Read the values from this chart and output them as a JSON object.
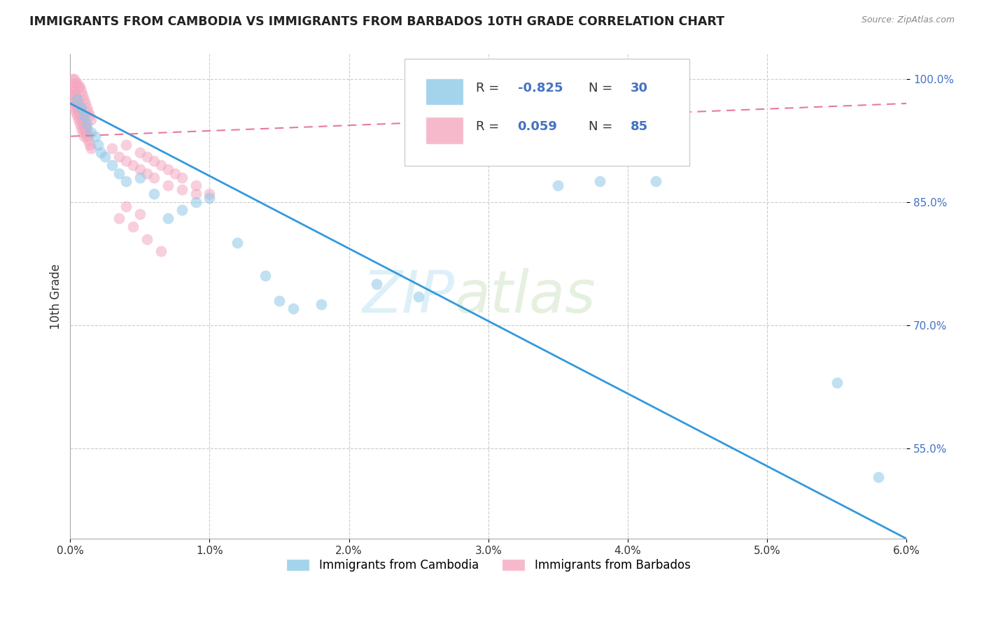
{
  "title": "IMMIGRANTS FROM CAMBODIA VS IMMIGRANTS FROM BARBADOS 10TH GRADE CORRELATION CHART",
  "source": "Source: ZipAtlas.com",
  "ylabel": "10th Grade",
  "xlim": [
    0.0,
    6.0
  ],
  "ylim": [
    44.0,
    103.0
  ],
  "yticks": [
    55.0,
    70.0,
    85.0,
    100.0
  ],
  "xticks": [
    0.0,
    1.0,
    2.0,
    3.0,
    4.0,
    5.0,
    6.0
  ],
  "xticklabels": [
    "0.0%",
    "1.0%",
    "2.0%",
    "3.0%",
    "4.0%",
    "5.0%",
    "6.0%"
  ],
  "yticklabels": [
    "55.0%",
    "70.0%",
    "85.0%",
    "100.0%"
  ],
  "grid_color": "#cccccc",
  "background_color": "#ffffff",
  "watermark_text": "ZIP",
  "watermark_text2": "atlas",
  "legend_R1": "-0.825",
  "legend_N1": "30",
  "legend_R2": "0.059",
  "legend_N2": "85",
  "series1_color": "#8ec8e8",
  "series2_color": "#f4a8c0",
  "trendline1_color": "#3399dd",
  "trendline2_color": "#e8799a",
  "cambodia_x": [
    0.05,
    0.08,
    0.1,
    0.12,
    0.15,
    0.18,
    0.2,
    0.22,
    0.25,
    0.3,
    0.35,
    0.4,
    0.5,
    0.6,
    0.7,
    0.8,
    0.9,
    1.0,
    1.2,
    1.4,
    1.5,
    1.6,
    1.8,
    2.2,
    2.5,
    3.5,
    3.8,
    4.2,
    5.5,
    5.8
  ],
  "cambodia_y": [
    97.5,
    96.5,
    95.5,
    94.5,
    93.5,
    93.0,
    92.0,
    91.0,
    90.5,
    89.5,
    88.5,
    87.5,
    88.0,
    86.0,
    83.0,
    84.0,
    85.0,
    85.5,
    80.0,
    76.0,
    73.0,
    72.0,
    72.5,
    75.0,
    73.5,
    87.0,
    87.5,
    87.5,
    63.0,
    51.5
  ],
  "barbados_x": [
    0.02,
    0.03,
    0.04,
    0.05,
    0.06,
    0.07,
    0.08,
    0.09,
    0.1,
    0.11,
    0.12,
    0.13,
    0.14,
    0.15,
    0.02,
    0.03,
    0.04,
    0.05,
    0.06,
    0.07,
    0.08,
    0.09,
    0.1,
    0.11,
    0.12,
    0.02,
    0.03,
    0.04,
    0.05,
    0.06,
    0.07,
    0.08,
    0.09,
    0.1,
    0.11,
    0.12,
    0.13,
    0.14,
    0.15,
    0.02,
    0.03,
    0.04,
    0.05,
    0.06,
    0.07,
    0.08,
    0.09,
    0.1,
    0.02,
    0.03,
    0.04,
    0.05,
    0.06,
    0.07,
    0.08,
    0.09,
    0.1,
    0.11,
    0.12,
    0.4,
    0.5,
    0.55,
    0.6,
    0.65,
    0.7,
    0.75,
    0.8,
    0.9,
    1.0,
    0.3,
    0.35,
    0.4,
    0.45,
    0.5,
    0.55,
    0.6,
    0.7,
    0.8,
    0.9,
    0.4,
    0.5,
    0.35,
    0.45,
    0.55,
    0.65
  ],
  "barbados_y": [
    100.0,
    100.0,
    99.5,
    99.5,
    99.0,
    99.0,
    98.5,
    98.0,
    97.5,
    97.0,
    96.5,
    96.0,
    95.5,
    95.0,
    99.0,
    98.5,
    98.0,
    97.5,
    97.0,
    96.5,
    96.0,
    95.5,
    95.0,
    94.5,
    94.0,
    98.0,
    97.5,
    97.0,
    96.5,
    96.0,
    95.5,
    95.0,
    94.5,
    94.0,
    93.5,
    93.0,
    92.5,
    92.0,
    91.5,
    97.0,
    96.5,
    96.0,
    95.5,
    95.0,
    94.5,
    94.0,
    93.5,
    93.0,
    98.5,
    98.0,
    97.5,
    97.0,
    96.5,
    96.0,
    95.5,
    95.0,
    94.5,
    94.0,
    93.5,
    92.0,
    91.0,
    90.5,
    90.0,
    89.5,
    89.0,
    88.5,
    88.0,
    87.0,
    86.0,
    91.5,
    90.5,
    90.0,
    89.5,
    89.0,
    88.5,
    88.0,
    87.0,
    86.5,
    86.0,
    84.5,
    83.5,
    83.0,
    82.0,
    80.5,
    79.0
  ]
}
